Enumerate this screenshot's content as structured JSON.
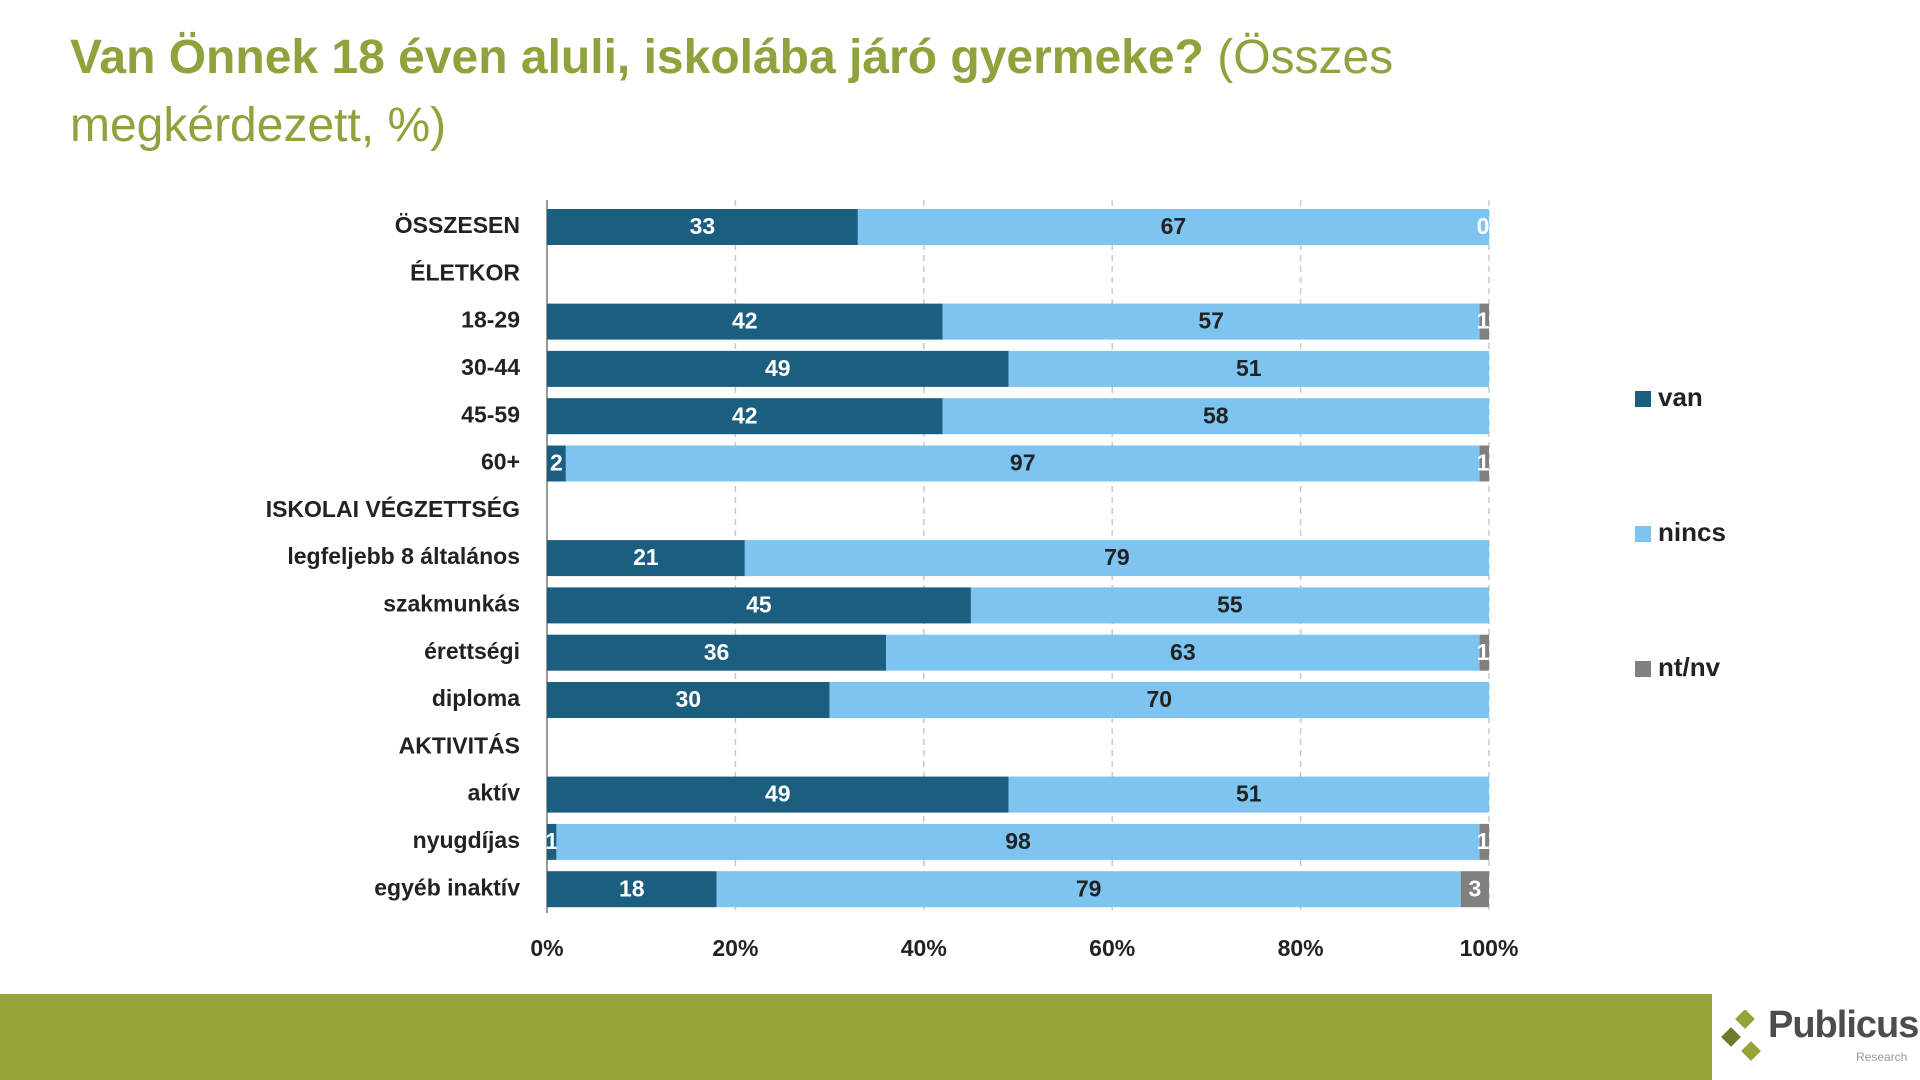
{
  "chart_data": {
    "type": "stacked-barh",
    "title": "Van Önnek 18 éven aluli, iskolába járó gyermeke?",
    "subtitle": "(Összes megkérdezett, %)",
    "categories": [
      "ÖSSZESEN",
      "ÉLETKOR",
      "18-29",
      "30-44",
      "45-59",
      "60+",
      "ISKOLAI VÉGZETTSÉG",
      "legfeljebb 8 általános",
      "szakmunkás",
      "érettségi",
      "diploma",
      "AKTIVITÁS",
      "aktív",
      "nyugdíjas",
      "egyéb inaktív"
    ],
    "series": [
      {
        "name": "van",
        "color": "#1b5e80",
        "values": [
          33,
          null,
          42,
          49,
          42,
          2,
          null,
          21,
          45,
          36,
          30,
          null,
          49,
          1,
          18
        ]
      },
      {
        "name": "nincs",
        "color": "#7dc4f1",
        "values": [
          67,
          null,
          57,
          51,
          58,
          97,
          null,
          79,
          55,
          63,
          70,
          null,
          51,
          98,
          79
        ]
      },
      {
        "name": "nt/nv",
        "color": "#808080",
        "values": [
          0,
          null,
          1,
          null,
          null,
          1,
          null,
          null,
          null,
          1,
          null,
          null,
          null,
          1,
          3
        ]
      }
    ],
    "xlim": [
      0,
      100
    ],
    "xticks": [
      {
        "value": 0,
        "label": "0%"
      },
      {
        "value": 20,
        "label": "20%"
      },
      {
        "value": 40,
        "label": "40%"
      },
      {
        "value": 60,
        "label": "60%"
      },
      {
        "value": 80,
        "label": "80%"
      },
      {
        "value": 100,
        "label": "100%"
      }
    ],
    "grid": true,
    "legend": "right"
  },
  "logo": {
    "name": "Publicus",
    "sub": "Research"
  }
}
